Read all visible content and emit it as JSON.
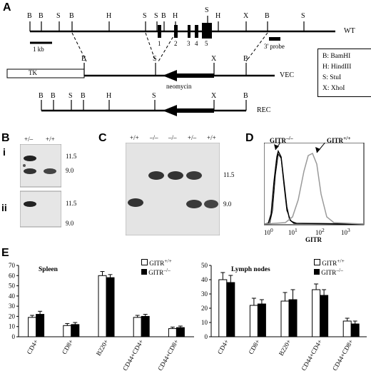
{
  "panels": {
    "a": {
      "letter": "A",
      "site_key": {
        "B": "B",
        "S": "S",
        "H": "H",
        "X": "X"
      },
      "wt": {
        "label": "WT",
        "sites_top": [
          "B",
          "B",
          "S",
          "B",
          "H",
          "S",
          "S",
          "B",
          "H",
          "S",
          "H",
          "X",
          "B",
          "S"
        ],
        "exons": [
          "1",
          "2",
          "3",
          "4",
          "5"
        ]
      },
      "probe_label": "3' probe",
      "scale_label": "1 kb",
      "vec": {
        "label": "VEC",
        "tk": "TK",
        "neo": "neomycin",
        "sites": [
          "B",
          "S",
          "X",
          "B"
        ]
      },
      "rec": {
        "label": "REC",
        "sites": [
          "B",
          "B",
          "S",
          "B",
          "H",
          "S",
          "X",
          "B"
        ]
      },
      "legend": [
        "B: BamHI",
        "H: HindIII",
        "S: StuI",
        "X: XhoI"
      ]
    },
    "b": {
      "letter": "B",
      "sub_i": "i",
      "sub_ii": "ii",
      "lanes": [
        "+/–",
        "+/+"
      ],
      "sizes_i": [
        "11.5",
        "9.0"
      ],
      "sizes_ii": [
        "11.5",
        "9.0"
      ]
    },
    "c": {
      "letter": "C",
      "lanes": [
        "+/+",
        "–/–",
        "–/–",
        "+/–",
        "+/+"
      ],
      "sizes": [
        "11.5",
        "9.0"
      ]
    },
    "d": {
      "letter": "D",
      "ko_label": "GITR",
      "ko_sup": "–/–",
      "wt_label": "GITR",
      "wt_sup": "+/+",
      "xlabel": "GITR",
      "ticks": [
        "10",
        "0",
        "10",
        "1",
        "10",
        "2",
        "10",
        "3"
      ]
    },
    "e": {
      "letter": "E",
      "legend_wt": "GITR",
      "legend_wt_sup": "+/+",
      "legend_ko": "GITR",
      "legend_ko_sup": "–/–"
    }
  },
  "chart_data": [
    {
      "type": "bar",
      "title": "Spleen",
      "categories": [
        "CD4+",
        "CD8+",
        "B220+",
        "CD44+CD4+",
        "CD44+CD8+"
      ],
      "series": [
        {
          "name": "GITR+/+",
          "values": [
            19,
            11,
            60,
            19,
            8
          ],
          "errors": [
            2,
            2,
            4,
            2,
            1.5
          ]
        },
        {
          "name": "GITR–/–",
          "values": [
            22,
            12,
            58,
            20,
            9
          ],
          "errors": [
            3,
            2,
            3,
            2,
            1.5
          ]
        }
      ],
      "ylim": [
        0,
        70
      ],
      "yticks": [
        0,
        10,
        20,
        30,
        40,
        50,
        60,
        70
      ]
    },
    {
      "type": "bar",
      "title": "Lymph nodes",
      "categories": [
        "CD4+",
        "CD8+",
        "B220+",
        "CD44+CD4+",
        "CD44+CD8+"
      ],
      "series": [
        {
          "name": "GITR+/+",
          "values": [
            40,
            22,
            25,
            33,
            11
          ],
          "errors": [
            5,
            5,
            6,
            4,
            2
          ]
        },
        {
          "name": "GITR–/–",
          "values": [
            38,
            23,
            26,
            29,
            9
          ],
          "errors": [
            5,
            3,
            7,
            4,
            2
          ]
        }
      ],
      "ylim": [
        0,
        50
      ],
      "yticks": [
        0,
        10,
        20,
        30,
        40,
        50
      ]
    }
  ]
}
